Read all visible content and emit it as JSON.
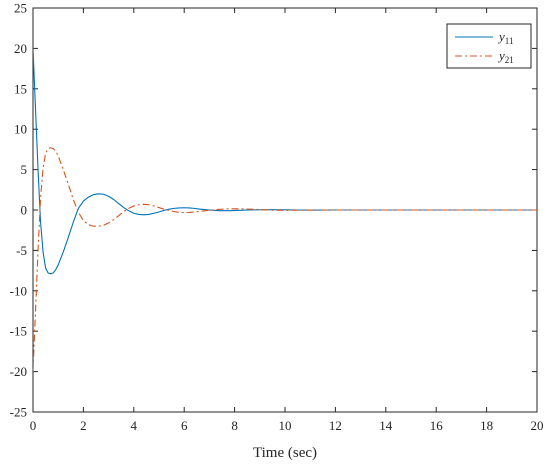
{
  "chart_data": {
    "type": "line",
    "title": "",
    "xlabel": "Time (sec)",
    "ylabel": "",
    "xlim": [
      0,
      20
    ],
    "ylim": [
      -25,
      25
    ],
    "xticks": [
      0,
      2,
      4,
      6,
      8,
      10,
      12,
      14,
      16,
      18,
      20
    ],
    "yticks": [
      -25,
      -20,
      -15,
      -10,
      -5,
      0,
      5,
      10,
      15,
      20,
      25
    ],
    "grid": false,
    "legend_position": "top-right",
    "series": [
      {
        "name": "y11",
        "name_base": "y",
        "name_sub": "11",
        "color": "#0072BD",
        "line_style": "solid",
        "x": [
          0,
          0.1,
          0.2,
          0.3,
          0.4,
          0.5,
          0.6,
          0.7,
          0.8,
          0.9,
          1.0,
          1.2,
          1.4,
          1.6,
          1.8,
          2.0,
          2.2,
          2.4,
          2.6,
          2.8,
          3.0,
          3.2,
          3.4,
          3.6,
          3.8,
          4.0,
          4.2,
          4.4,
          4.6,
          4.8,
          5.0,
          5.2,
          5.4,
          5.6,
          5.8,
          6.0,
          6.2,
          6.4,
          6.6,
          6.8,
          7.0,
          7.4,
          7.8,
          8.2,
          8.6,
          9.0,
          9.5,
          10.0,
          10.5,
          11.0,
          11.5,
          12.0,
          13.0,
          14.0,
          15.0,
          16.0,
          17.0,
          18.0,
          19.0,
          20.0
        ],
        "y": [
          20.0,
          12.5,
          5.0,
          -1.5,
          -5.2,
          -7.2,
          -7.8,
          -7.9,
          -7.8,
          -7.4,
          -6.8,
          -5.2,
          -3.4,
          -1.5,
          0.2,
          1.1,
          1.6,
          1.9,
          2.0,
          1.95,
          1.7,
          1.3,
          0.8,
          0.3,
          -0.1,
          -0.4,
          -0.55,
          -0.6,
          -0.55,
          -0.4,
          -0.25,
          -0.05,
          0.1,
          0.2,
          0.25,
          0.28,
          0.25,
          0.2,
          0.12,
          0.05,
          0.0,
          -0.08,
          -0.08,
          -0.04,
          0.0,
          0.03,
          0.04,
          0.02,
          0.0,
          -0.01,
          -0.01,
          0.0,
          0.0,
          0.0,
          0.0,
          0.0,
          0.0,
          0.0,
          0.0,
          0.0
        ]
      },
      {
        "name": "y21",
        "name_base": "y",
        "name_sub": "21",
        "color": "#D95319",
        "line_style": "dash-dot",
        "x": [
          0,
          0.1,
          0.2,
          0.3,
          0.4,
          0.5,
          0.6,
          0.7,
          0.8,
          0.9,
          1.0,
          1.2,
          1.4,
          1.6,
          1.8,
          2.0,
          2.2,
          2.4,
          2.6,
          2.8,
          3.0,
          3.2,
          3.4,
          3.6,
          3.8,
          4.0,
          4.2,
          4.4,
          4.6,
          4.8,
          5.0,
          5.2,
          5.4,
          5.6,
          5.8,
          6.0,
          6.2,
          6.4,
          6.6,
          6.8,
          7.0,
          7.4,
          7.8,
          8.2,
          8.6,
          9.0,
          9.5,
          10.0,
          10.5,
          11.0,
          11.5,
          12.0,
          13.0,
          14.0,
          15.0,
          16.0,
          17.0,
          18.0,
          19.0,
          20.0
        ],
        "y": [
          -20.0,
          -12.5,
          -5.0,
          1.5,
          5.2,
          7.0,
          7.6,
          7.7,
          7.6,
          7.3,
          6.7,
          5.0,
          3.2,
          1.3,
          -0.3,
          -1.3,
          -1.8,
          -2.0,
          -2.0,
          -1.9,
          -1.6,
          -1.2,
          -0.7,
          -0.2,
          0.2,
          0.5,
          0.65,
          0.7,
          0.65,
          0.5,
          0.3,
          0.1,
          -0.05,
          -0.2,
          -0.28,
          -0.32,
          -0.3,
          -0.25,
          -0.18,
          -0.1,
          -0.03,
          0.08,
          0.15,
          0.15,
          0.1,
          0.05,
          -0.02,
          -0.04,
          -0.03,
          -0.01,
          0.0,
          0.0,
          0.0,
          0.0,
          0.0,
          0.0,
          0.0,
          0.0,
          0.0,
          0.0
        ]
      }
    ]
  }
}
